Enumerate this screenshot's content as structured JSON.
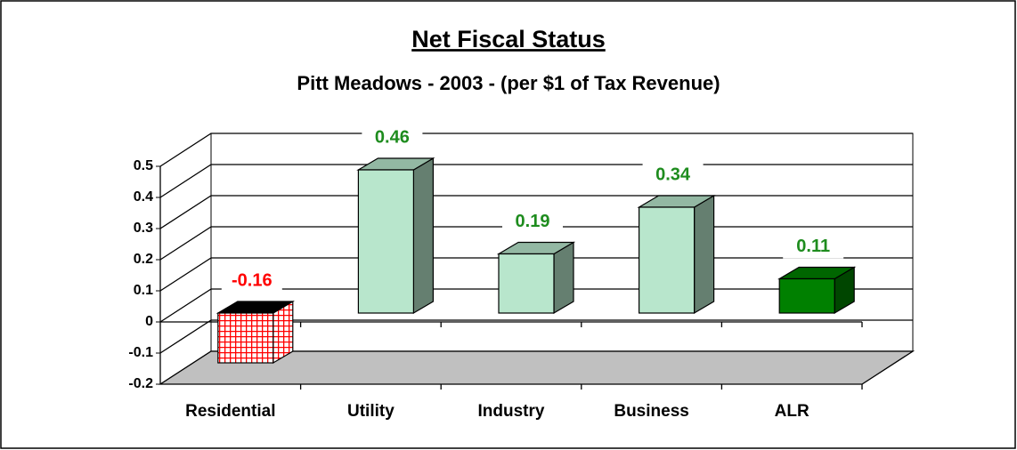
{
  "chart_data": {
    "type": "bar3d",
    "title": "Net Fiscal Status",
    "subtitle": "Pitt Meadows - 2003 - (per $1 of Tax Revenue)",
    "categories": [
      "Residential",
      "Utility",
      "Industry",
      "Business",
      "ALR"
    ],
    "values": [
      -0.16,
      0.46,
      0.19,
      0.34,
      0.11
    ],
    "colors": [
      "#ff0000",
      "#b8e6cc",
      "#b8e6cc",
      "#b8e6cc",
      "#008000"
    ],
    "label_colors": [
      "#ff0000",
      "#1e8c1e",
      "#1e8c1e",
      "#1e8c1e",
      "#1e8c1e"
    ],
    "ylim": [
      -0.2,
      0.5
    ],
    "yticks": [
      -0.2,
      -0.1,
      0,
      0.1,
      0.2,
      0.3,
      0.4,
      0.5
    ],
    "grid": true,
    "floor_color": "#c0c0c0"
  }
}
